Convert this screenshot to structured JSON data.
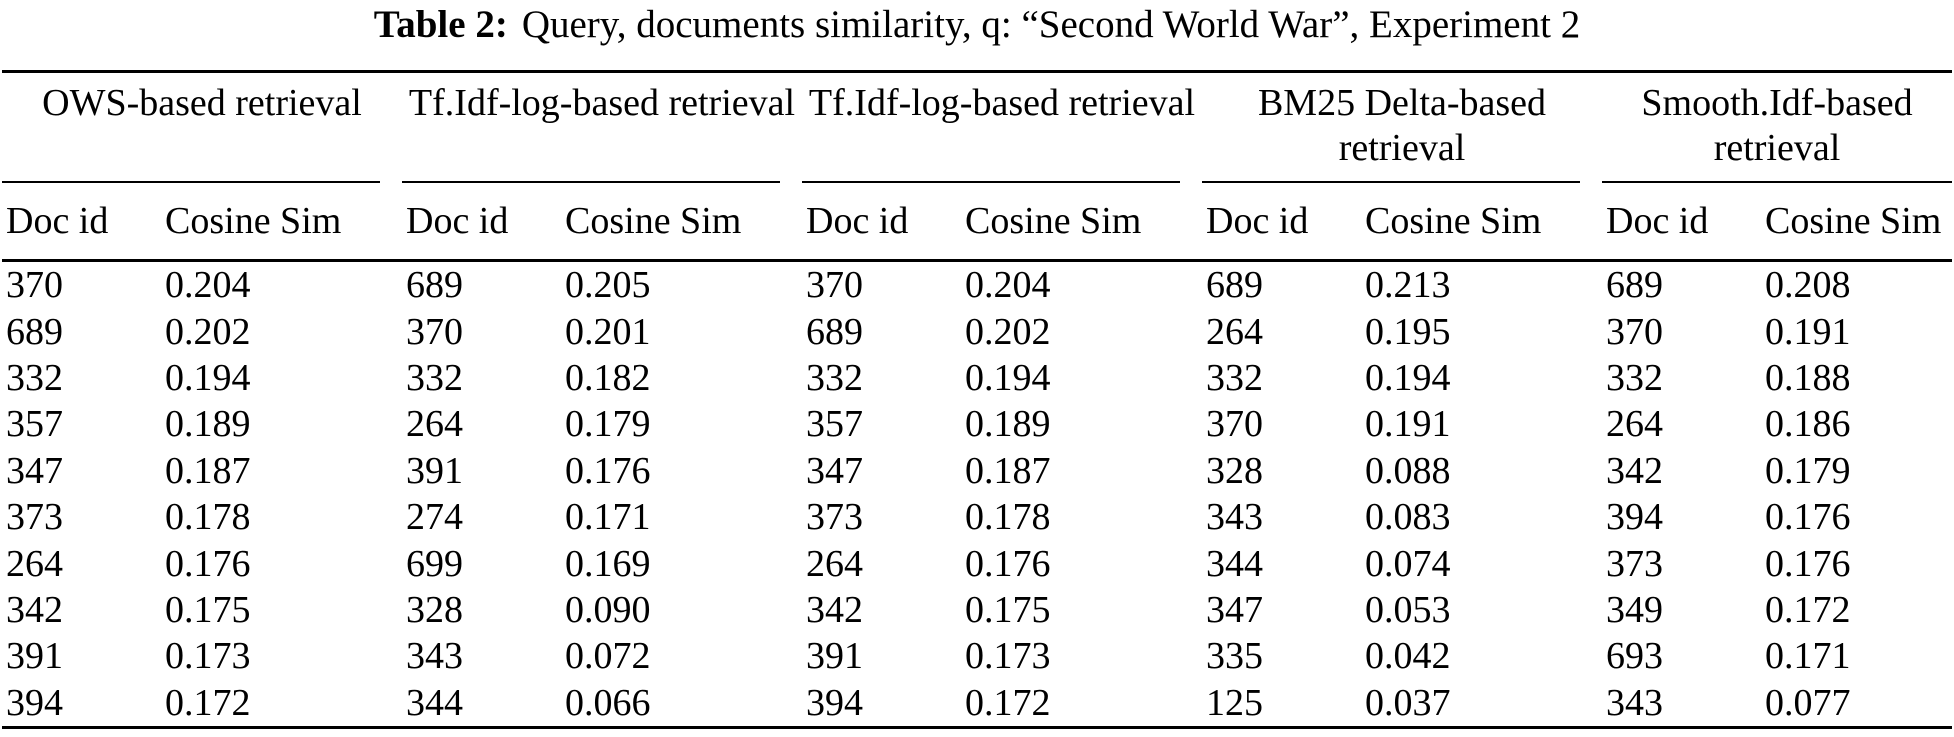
{
  "caption": {
    "label": "Table 2:",
    "text": "Query, documents similarity, q: “Second World War”, Experiment 2"
  },
  "table": {
    "col_headers": {
      "doc_id": "Doc id",
      "cosine": "Cosine Sim"
    },
    "groups": [
      {
        "name": "OWS-based retrieval",
        "rows": [
          {
            "doc_id": "370",
            "cosine": "0.204"
          },
          {
            "doc_id": "689",
            "cosine": "0.202"
          },
          {
            "doc_id": "332",
            "cosine": "0.194"
          },
          {
            "doc_id": "357",
            "cosine": "0.189"
          },
          {
            "doc_id": "347",
            "cosine": "0.187"
          },
          {
            "doc_id": "373",
            "cosine": "0.178"
          },
          {
            "doc_id": "264",
            "cosine": "0.176"
          },
          {
            "doc_id": "342",
            "cosine": "0.175"
          },
          {
            "doc_id": "391",
            "cosine": "0.173"
          },
          {
            "doc_id": "394",
            "cosine": "0.172"
          }
        ]
      },
      {
        "name": "Tf.Idf-log-based retrieval",
        "rows": [
          {
            "doc_id": "689",
            "cosine": "0.205"
          },
          {
            "doc_id": "370",
            "cosine": "0.201"
          },
          {
            "doc_id": "332",
            "cosine": "0.182"
          },
          {
            "doc_id": "264",
            "cosine": "0.179"
          },
          {
            "doc_id": "391",
            "cosine": "0.176"
          },
          {
            "doc_id": "274",
            "cosine": "0.171"
          },
          {
            "doc_id": "699",
            "cosine": "0.169"
          },
          {
            "doc_id": "328",
            "cosine": "0.090"
          },
          {
            "doc_id": "343",
            "cosine": "0.072"
          },
          {
            "doc_id": "344",
            "cosine": "0.066"
          }
        ]
      },
      {
        "name": "Tf.Idf-log-based retrieval",
        "rows": [
          {
            "doc_id": "370",
            "cosine": "0.204"
          },
          {
            "doc_id": "689",
            "cosine": "0.202"
          },
          {
            "doc_id": "332",
            "cosine": "0.194"
          },
          {
            "doc_id": "357",
            "cosine": "0.189"
          },
          {
            "doc_id": "347",
            "cosine": "0.187"
          },
          {
            "doc_id": "373",
            "cosine": "0.178"
          },
          {
            "doc_id": "264",
            "cosine": "0.176"
          },
          {
            "doc_id": "342",
            "cosine": "0.175"
          },
          {
            "doc_id": "391",
            "cosine": "0.173"
          },
          {
            "doc_id": "394",
            "cosine": "0.172"
          }
        ]
      },
      {
        "name": "BM25 Delta-based retrieval",
        "rows": [
          {
            "doc_id": "689",
            "cosine": "0.213"
          },
          {
            "doc_id": "264",
            "cosine": "0.195"
          },
          {
            "doc_id": "332",
            "cosine": "0.194"
          },
          {
            "doc_id": "370",
            "cosine": "0.191"
          },
          {
            "doc_id": "328",
            "cosine": "0.088"
          },
          {
            "doc_id": "343",
            "cosine": "0.083"
          },
          {
            "doc_id": "344",
            "cosine": "0.074"
          },
          {
            "doc_id": "347",
            "cosine": "0.053"
          },
          {
            "doc_id": "335",
            "cosine": "0.042"
          },
          {
            "doc_id": "125",
            "cosine": "0.037"
          }
        ]
      },
      {
        "name": "Smooth.Idf-based retrieval",
        "rows": [
          {
            "doc_id": "689",
            "cosine": "0.208"
          },
          {
            "doc_id": "370",
            "cosine": "0.191"
          },
          {
            "doc_id": "332",
            "cosine": "0.188"
          },
          {
            "doc_id": "264",
            "cosine": "0.186"
          },
          {
            "doc_id": "342",
            "cosine": "0.179"
          },
          {
            "doc_id": "394",
            "cosine": "0.176"
          },
          {
            "doc_id": "373",
            "cosine": "0.176"
          },
          {
            "doc_id": "349",
            "cosine": "0.172"
          },
          {
            "doc_id": "693",
            "cosine": "0.171"
          },
          {
            "doc_id": "343",
            "cosine": "0.077"
          }
        ]
      }
    ]
  }
}
